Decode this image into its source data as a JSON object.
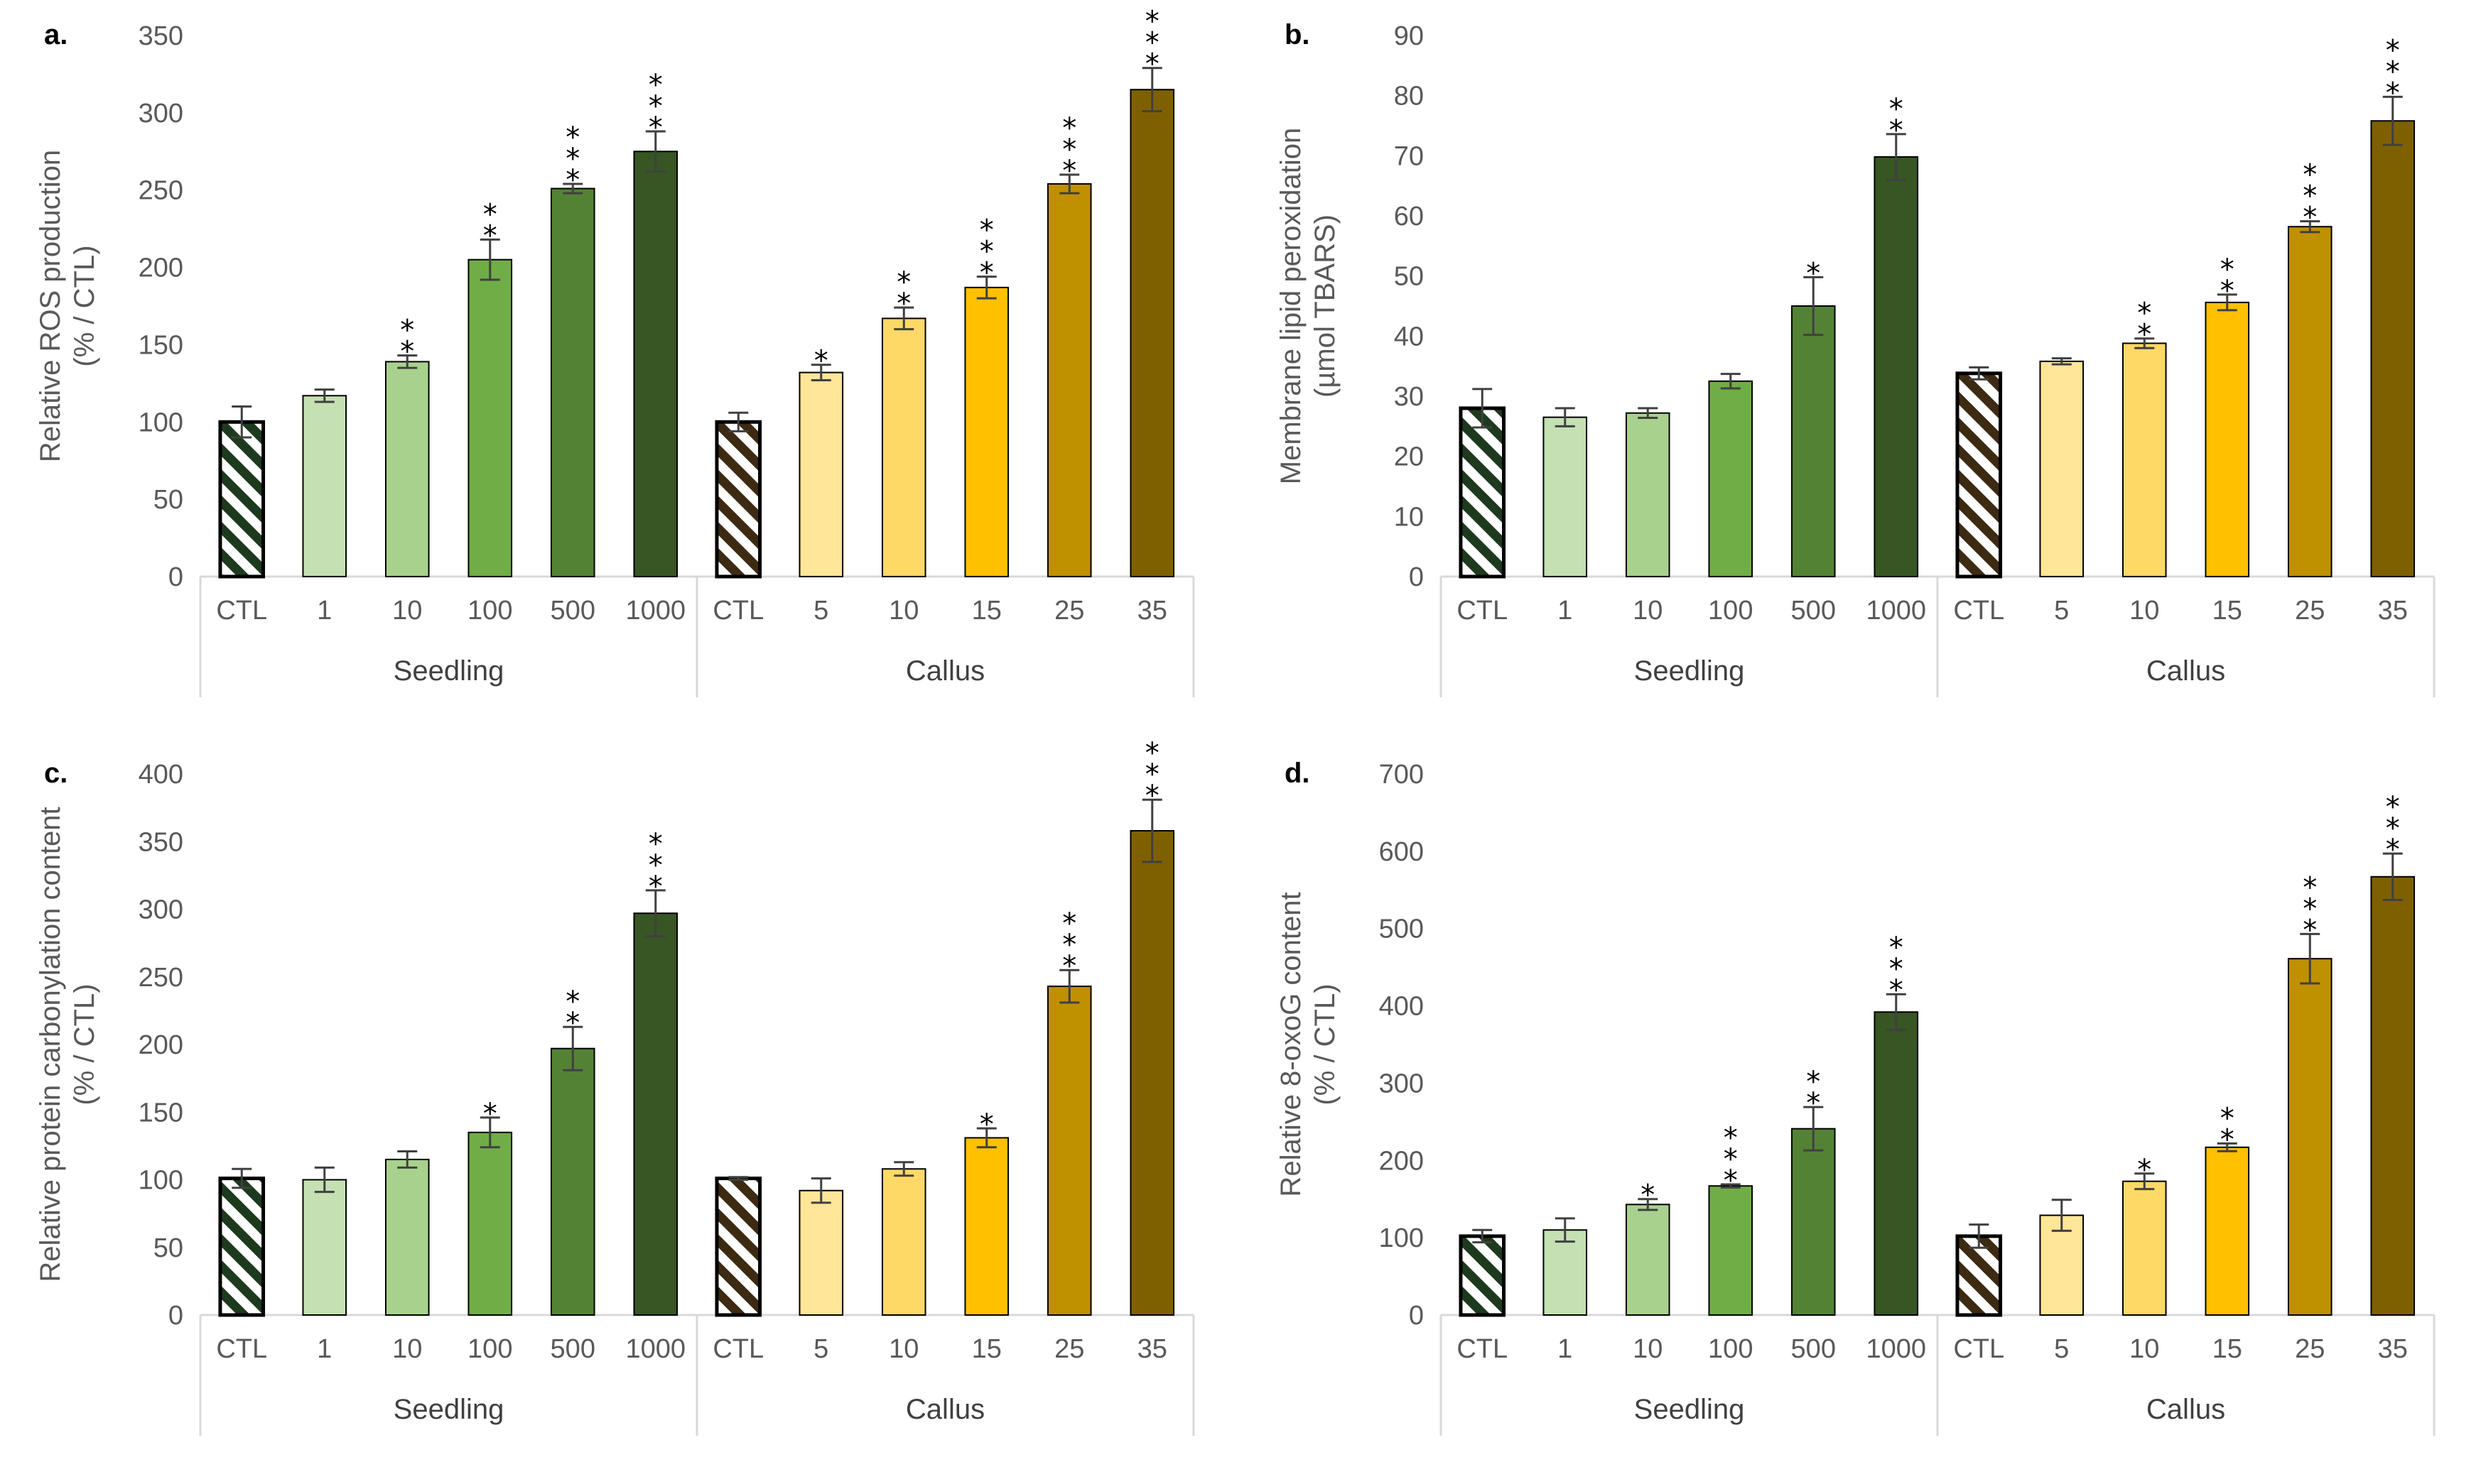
{
  "figure": {
    "panels": [
      "a.",
      "b.",
      "c.",
      "d."
    ]
  },
  "colors": {
    "seedling_ctl": "#1e3a1e",
    "seedling_1": "#c5e0b3",
    "seedling_10": "#a9d18e",
    "seedling_100": "#70ad47",
    "seedling_500": "#548235",
    "seedling_1000": "#375623",
    "callus_ctl": "#3d2a12",
    "callus_5": "#ffe699",
    "callus_10": "#ffd966",
    "callus_15": "#ffc000",
    "callus_25": "#bf9000",
    "callus_35": "#7f6000",
    "axis": "#d9d9d9",
    "tick_text": "#595959",
    "error_bar": "#404040"
  },
  "chart_data": [
    {
      "type": "bar",
      "panel_label": "a.",
      "title": "",
      "ylabel": "Relative ROS production (% / CTL)",
      "ylabel_lines": [
        "Relative ROS production",
        "(% / CTL)"
      ],
      "ylim": [
        0,
        350
      ],
      "yticks": [
        0,
        50,
        100,
        150,
        200,
        250,
        300,
        350
      ],
      "grid": false,
      "categories": [
        "CTL",
        "1",
        "10",
        "100",
        "500",
        "1000",
        "CTL",
        "5",
        "10",
        "15",
        "25",
        "35"
      ],
      "groups": [
        {
          "name": "Seedling",
          "count": 6
        },
        {
          "name": "Callus",
          "count": 6
        }
      ],
      "values": [
        100,
        117,
        139,
        205,
        251,
        275,
        100,
        132,
        167,
        187,
        254,
        315
      ],
      "errors": [
        10,
        4,
        4,
        13,
        3,
        13,
        6,
        5,
        7,
        7,
        6,
        14
      ],
      "significance": [
        "",
        "",
        "**",
        "**",
        "***",
        "***",
        "",
        "*",
        "**",
        "***",
        "***",
        "***"
      ]
    },
    {
      "type": "bar",
      "panel_label": "b.",
      "title": "",
      "ylabel": "Membrane lipid peroxidation (µmol TBARS)",
      "ylabel_lines": [
        "Membrane lipid peroxidation",
        "(µmol TBARS)"
      ],
      "ylim": [
        0,
        90
      ],
      "yticks": [
        0,
        10,
        20,
        30,
        40,
        50,
        60,
        70,
        80,
        90
      ],
      "grid": false,
      "categories": [
        "CTL",
        "1",
        "10",
        "100",
        "500",
        "1000",
        "CTL",
        "5",
        "10",
        "15",
        "25",
        "35"
      ],
      "groups": [
        {
          "name": "Seedling",
          "count": 6
        },
        {
          "name": "Callus",
          "count": 6
        }
      ],
      "values": [
        28,
        26.5,
        27.2,
        32.5,
        45,
        69.8,
        33.8,
        35.8,
        38.8,
        45.6,
        58.2,
        75.8
      ],
      "errors": [
        3.2,
        1.5,
        0.8,
        1.2,
        4.8,
        3.8,
        1,
        0.5,
        0.8,
        1.3,
        0.9,
        4
      ],
      "significance": [
        "",
        "",
        "",
        "",
        "*",
        "**",
        "",
        "",
        "**",
        "**",
        "***",
        "***"
      ]
    },
    {
      "type": "bar",
      "panel_label": "c.",
      "title": "",
      "ylabel": "Relative protein carbonylation content (% / CTL)",
      "ylabel_lines": [
        "Relative protein carbonylation content",
        "(% / CTL)"
      ],
      "ylim": [
        0,
        400
      ],
      "yticks": [
        0,
        50,
        100,
        150,
        200,
        250,
        300,
        350,
        400
      ],
      "grid": false,
      "categories": [
        "CTL",
        "1",
        "10",
        "100",
        "500",
        "1000",
        "CTL",
        "5",
        "10",
        "15",
        "25",
        "35"
      ],
      "groups": [
        {
          "name": "Seedling",
          "count": 6
        },
        {
          "name": "Callus",
          "count": 6
        }
      ],
      "values": [
        101,
        100,
        115,
        135,
        197,
        297,
        101,
        92,
        108,
        131,
        243,
        358
      ],
      "errors": [
        7,
        9,
        6,
        11,
        16,
        17,
        1,
        9,
        5,
        7,
        12,
        23
      ],
      "significance": [
        "",
        "",
        "",
        "*",
        "**",
        "***",
        "",
        "",
        "",
        "*",
        "***",
        "***"
      ]
    },
    {
      "type": "bar",
      "panel_label": "d.",
      "title": "",
      "ylabel": "Relative 8-oxoG content (% / CTL)",
      "ylabel_lines": [
        "Relative 8-oxoG content",
        "(% / CTL)"
      ],
      "ylim": [
        0,
        700
      ],
      "yticks": [
        0,
        100,
        200,
        300,
        400,
        500,
        600,
        700
      ],
      "grid": false,
      "categories": [
        "CTL",
        "1",
        "10",
        "100",
        "500",
        "1000",
        "CTL",
        "5",
        "10",
        "15",
        "25",
        "35"
      ],
      "groups": [
        {
          "name": "Seedling",
          "count": 6
        },
        {
          "name": "Callus",
          "count": 6
        }
      ],
      "values": [
        102,
        110,
        143,
        167,
        241,
        392,
        102,
        129,
        173,
        217,
        461,
        567
      ],
      "errors": [
        8,
        15,
        7,
        2,
        28,
        23,
        15,
        20,
        10,
        5,
        32,
        30
      ],
      "significance": [
        "",
        "",
        "*",
        "***",
        "**",
        "***",
        "",
        "",
        "*",
        "**",
        "***",
        "***"
      ]
    }
  ]
}
